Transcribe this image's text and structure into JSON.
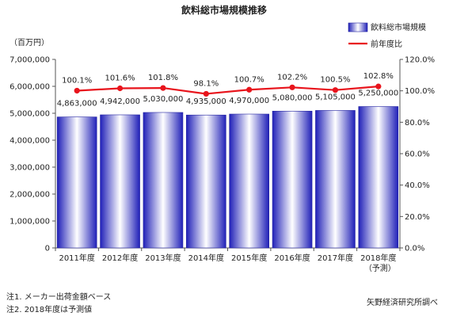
{
  "chart_data": {
    "type": "bar+line",
    "title": "飲料総市場規模推移",
    "categories": [
      "2011年度",
      "2012年度",
      "2013年度",
      "2014年度",
      "2015年度",
      "2016年度",
      "2017年度",
      "2018年度"
    ],
    "category_sublabels": [
      "",
      "",
      "",
      "",
      "",
      "",
      "",
      "（予測）"
    ],
    "y_left": {
      "unit_label": "（百万円）",
      "lim": [
        0,
        7000000
      ],
      "ticks": [
        0,
        1000000,
        2000000,
        3000000,
        4000000,
        5000000,
        6000000,
        7000000
      ],
      "tick_labels": [
        "0",
        "1,000,000",
        "2,000,000",
        "3,000,000",
        "4,000,000",
        "5,000,000",
        "6,000,000",
        "7,000,000"
      ]
    },
    "y_right": {
      "lim": [
        0,
        120
      ],
      "ticks": [
        0,
        20,
        40,
        60,
        80,
        100,
        120
      ],
      "tick_labels": [
        "0.0%",
        "20.0%",
        "40.0%",
        "60.0%",
        "80.0%",
        "100.0%",
        "120.0%"
      ]
    },
    "series": [
      {
        "name": "飲料総市場規模",
        "kind": "bar",
        "axis": "left",
        "values": [
          4863000,
          4942000,
          5030000,
          4935000,
          4970000,
          5080000,
          5105000,
          5250000
        ],
        "labels": [
          "4,863,000",
          "4,942,000",
          "5,030,000",
          "4,935,000",
          "4,970,000",
          "5,080,000",
          "5,105,000",
          "5,250,000"
        ],
        "color": "#3b3bd6"
      },
      {
        "name": "前年度比",
        "kind": "line",
        "axis": "right",
        "values": [
          100.1,
          101.6,
          101.8,
          98.1,
          100.7,
          102.2,
          100.5,
          102.8
        ],
        "labels": [
          "100.1%",
          "101.6%",
          "101.8%",
          "98.1%",
          "100.7%",
          "102.2%",
          "100.5%",
          "102.8%"
        ],
        "color": "#e8141c"
      }
    ],
    "legend_position": "top-right",
    "grid": false
  },
  "notes": [
    "注1. メーカー出荷金額ベース",
    "注2. 2018年度は予測値"
  ],
  "source": "矢野経済研究所調べ"
}
